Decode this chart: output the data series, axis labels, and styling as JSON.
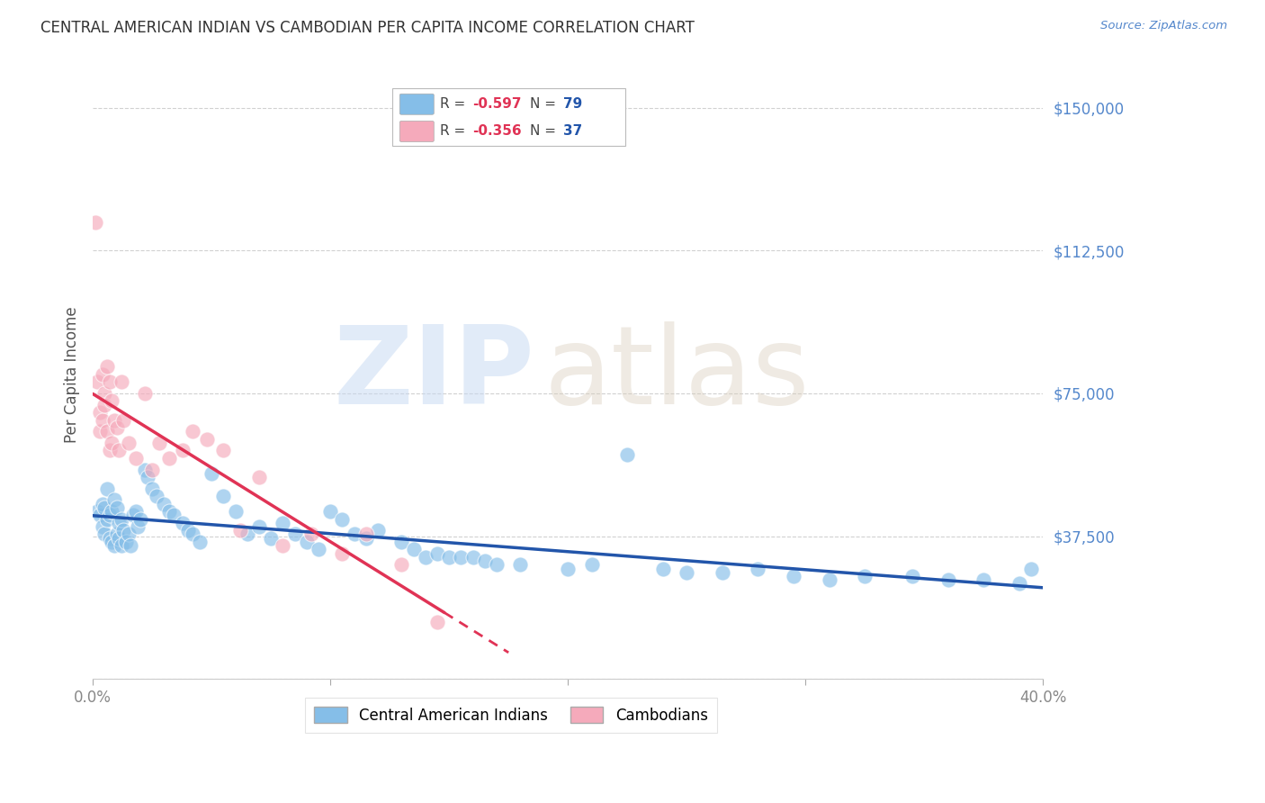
{
  "title": "CENTRAL AMERICAN INDIAN VS CAMBODIAN PER CAPITA INCOME CORRELATION CHART",
  "source": "Source: ZipAtlas.com",
  "ylabel": "Per Capita Income",
  "yticks": [
    0,
    37500,
    75000,
    112500,
    150000
  ],
  "ytick_labels": [
    "",
    "$37,500",
    "$75,000",
    "$112,500",
    "$150,000"
  ],
  "xmin": 0.0,
  "xmax": 0.4,
  "ymin": 0,
  "ymax": 160000,
  "blue_R": "-0.597",
  "blue_N": "79",
  "pink_R": "-0.356",
  "pink_N": "37",
  "legend_label_blue": "Central American Indians",
  "legend_label_pink": "Cambodians",
  "blue_color": "#85BEE8",
  "pink_color": "#F5AABB",
  "blue_line_color": "#2255AA",
  "pink_line_color": "#E03355",
  "title_color": "#333333",
  "source_color": "#5588CC",
  "axis_label_color": "#5588CC",
  "ytick_color": "#5588CC",
  "grid_color": "#CCCCCC",
  "background_color": "#FFFFFF",
  "blue_x": [
    0.002,
    0.003,
    0.004,
    0.004,
    0.005,
    0.005,
    0.006,
    0.006,
    0.007,
    0.007,
    0.008,
    0.008,
    0.009,
    0.009,
    0.01,
    0.01,
    0.011,
    0.011,
    0.012,
    0.012,
    0.013,
    0.014,
    0.015,
    0.016,
    0.017,
    0.018,
    0.019,
    0.02,
    0.022,
    0.023,
    0.025,
    0.027,
    0.03,
    0.032,
    0.034,
    0.038,
    0.04,
    0.042,
    0.045,
    0.05,
    0.055,
    0.06,
    0.065,
    0.07,
    0.075,
    0.08,
    0.085,
    0.09,
    0.095,
    0.1,
    0.105,
    0.11,
    0.115,
    0.12,
    0.13,
    0.135,
    0.14,
    0.145,
    0.15,
    0.155,
    0.16,
    0.165,
    0.17,
    0.18,
    0.2,
    0.21,
    0.225,
    0.24,
    0.25,
    0.265,
    0.28,
    0.295,
    0.31,
    0.325,
    0.345,
    0.36,
    0.375,
    0.39,
    0.395
  ],
  "blue_y": [
    44000,
    43000,
    46000,
    40000,
    45000,
    38000,
    50000,
    42000,
    43000,
    37000,
    44000,
    36000,
    47000,
    35000,
    45000,
    38000,
    41000,
    37000,
    42000,
    35000,
    39000,
    36000,
    38000,
    35000,
    43000,
    44000,
    40000,
    42000,
    55000,
    53000,
    50000,
    48000,
    46000,
    44000,
    43000,
    41000,
    39000,
    38000,
    36000,
    54000,
    48000,
    44000,
    38000,
    40000,
    37000,
    41000,
    38000,
    36000,
    34000,
    44000,
    42000,
    38000,
    37000,
    39000,
    36000,
    34000,
    32000,
    33000,
    32000,
    32000,
    32000,
    31000,
    30000,
    30000,
    29000,
    30000,
    59000,
    29000,
    28000,
    28000,
    29000,
    27000,
    26000,
    27000,
    27000,
    26000,
    26000,
    25000,
    29000
  ],
  "pink_x": [
    0.001,
    0.002,
    0.003,
    0.003,
    0.004,
    0.004,
    0.005,
    0.005,
    0.006,
    0.006,
    0.007,
    0.007,
    0.008,
    0.008,
    0.009,
    0.01,
    0.011,
    0.012,
    0.013,
    0.015,
    0.018,
    0.022,
    0.025,
    0.028,
    0.032,
    0.038,
    0.042,
    0.048,
    0.055,
    0.062,
    0.07,
    0.08,
    0.092,
    0.105,
    0.115,
    0.13,
    0.145
  ],
  "pink_y": [
    120000,
    78000,
    70000,
    65000,
    80000,
    68000,
    75000,
    72000,
    82000,
    65000,
    78000,
    60000,
    73000,
    62000,
    68000,
    66000,
    60000,
    78000,
    68000,
    62000,
    58000,
    75000,
    55000,
    62000,
    58000,
    60000,
    65000,
    63000,
    60000,
    39000,
    53000,
    35000,
    38000,
    33000,
    38000,
    30000,
    15000
  ]
}
